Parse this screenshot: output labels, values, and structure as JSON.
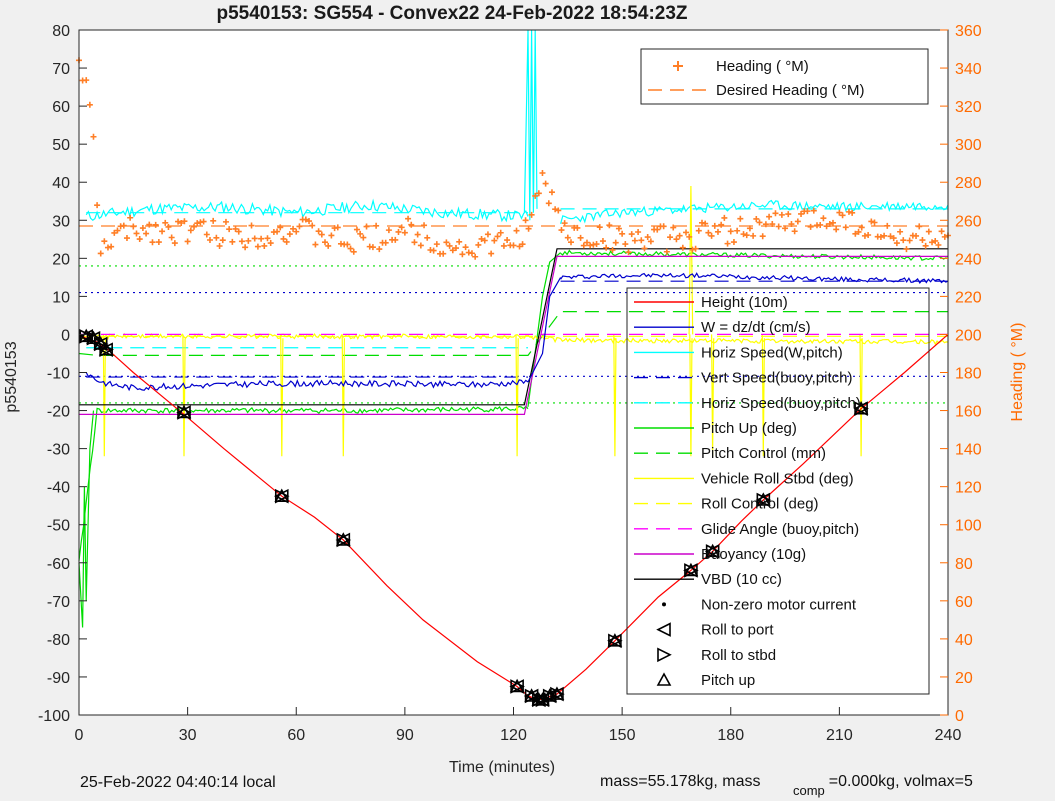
{
  "chart_data": {
    "type": "line",
    "title": "p5540153: SG554 - Convex22 24-Feb-2022 18:54:23Z",
    "xlabel": "Time (minutes)",
    "ylabel": "p5540153",
    "y2label": "Heading ( °M)",
    "xlim": [
      0,
      240
    ],
    "ylim": [
      -100,
      80
    ],
    "y2lim": [
      0,
      360
    ],
    "xticks": [
      0,
      30,
      60,
      90,
      120,
      150,
      180,
      210,
      240
    ],
    "yticks": [
      -100,
      -90,
      -80,
      -70,
      -60,
      -50,
      -40,
      -30,
      -20,
      -10,
      0,
      10,
      20,
      30,
      40,
      50,
      60,
      70,
      80
    ],
    "y2ticks": [
      0,
      20,
      40,
      60,
      80,
      100,
      120,
      140,
      160,
      180,
      200,
      220,
      240,
      260,
      280,
      300,
      320,
      340,
      360
    ],
    "colors": {
      "height": "#ff0000",
      "w": "#0000cc",
      "horiz": "#00ffff",
      "pitch": "#00dd00",
      "roll": "#ffff00",
      "glide": "#ff00ff",
      "buoy": "#cc00cc",
      "vbd": "#000000",
      "heading": "#ff7f27",
      "heading_axis": "#ff6a00"
    },
    "legend_top": [
      {
        "label": "Heading ( °M)",
        "style": "plus",
        "color": "#ff7f27"
      },
      {
        "label": "Desired Heading ( °M)",
        "style": "dash",
        "color": "#ff7f27"
      }
    ],
    "legend_main": [
      {
        "label": "Height (10m)",
        "style": "solid",
        "color": "#ff0000"
      },
      {
        "label": "W = dz/dt (cm/s)",
        "style": "solid",
        "color": "#0000cc"
      },
      {
        "label": "Horiz Speed(W,pitch)",
        "style": "solid",
        "color": "#00ffff"
      },
      {
        "label": "Vert Speed(buoy,pitch)",
        "style": "dash",
        "color": "#0000cc"
      },
      {
        "label": "Horiz Speed(buoy,pitch)",
        "style": "dash",
        "color": "#00ffff"
      },
      {
        "label": "Pitch Up (deg)",
        "style": "solid",
        "color": "#00dd00"
      },
      {
        "label": "Pitch Control (mm)",
        "style": "dash",
        "color": "#00dd00"
      },
      {
        "label": "Vehicle Roll Stbd (deg)",
        "style": "solid",
        "color": "#ffff00"
      },
      {
        "label": "Roll Control (deg)",
        "style": "dash",
        "color": "#ffff00"
      },
      {
        "label": "Glide Angle (buoy,pitch)",
        "style": "dash",
        "color": "#ff00ff"
      },
      {
        "label": "Buoyancy (10g)",
        "style": "solid",
        "color": "#cc00cc"
      },
      {
        "label": "VBD (10 cc)",
        "style": "solid",
        "color": "#000000"
      },
      {
        "label": "Non-zero motor current",
        "style": "dot",
        "color": "#000000"
      },
      {
        "label": "Roll to port",
        "style": "tri-left",
        "color": "#000000"
      },
      {
        "label": "Roll to stbd",
        "style": "tri-right",
        "color": "#000000"
      },
      {
        "label": "Pitch up",
        "style": "tri-up",
        "color": "#000000"
      }
    ],
    "series": {
      "height": {
        "x": [
          0,
          2,
          5,
          8,
          15,
          29,
          40,
          56,
          65,
          73,
          85,
          95,
          110,
          121,
          124,
          127,
          129,
          132,
          140,
          148,
          160,
          169,
          175,
          183,
          189,
          200,
          216,
          228,
          240
        ],
        "y": [
          0,
          -1,
          -2,
          -4,
          -10,
          -21,
          -30,
          -42.5,
          -48,
          -54,
          -66,
          -75,
          -86,
          -92.5,
          -95,
          -96,
          -95.5,
          -94.5,
          -88,
          -80.5,
          -69,
          -62,
          -57,
          -49,
          -43.5,
          -34,
          -19.5,
          -10,
          0
        ]
      },
      "w_down": {
        "x": [
          2,
          5,
          8,
          15,
          30,
          50,
          70,
          90,
          110,
          124
        ],
        "y": [
          -10,
          -12,
          -13,
          -14,
          -13.5,
          -13,
          -12.8,
          -13,
          -13.2,
          -12.5
        ]
      },
      "w_up": {
        "x": [
          133,
          150,
          170,
          190,
          210,
          240
        ],
        "y": [
          15,
          15.5,
          15.5,
          15,
          14.5,
          14
        ]
      },
      "horiz_down": {
        "x": [
          2,
          20,
          40,
          60,
          80,
          100,
          124
        ],
        "y": [
          31,
          33,
          33.5,
          32,
          34,
          32,
          31
        ]
      },
      "horiz_up": {
        "x": [
          133,
          150,
          170,
          190,
          210,
          240
        ],
        "y": [
          30,
          32,
          33,
          34,
          33.5,
          34
        ]
      },
      "pitch_down": {
        "x": [
          0,
          5,
          10,
          40,
          80,
          124
        ],
        "y": [
          -60,
          -20,
          -20,
          -20,
          -20,
          -19.5
        ]
      },
      "pitch_up": {
        "x": [
          133,
          240
        ],
        "y": [
          21.5,
          20
        ]
      },
      "pitch_ctrl": {
        "x": [
          0,
          5,
          124,
          133,
          240
        ],
        "y": [
          -5,
          -5.5,
          -5.5,
          6,
          6
        ]
      },
      "roll_ctrl": {
        "x": [
          0,
          240
        ],
        "y": [
          -0.5,
          -0.5
        ]
      },
      "glide": {
        "x": [
          0,
          240
        ],
        "y": [
          0,
          0
        ]
      },
      "buoy": {
        "x": [
          0,
          2,
          123,
          132,
          240
        ],
        "y": [
          -21,
          -21,
          -21,
          20.5,
          20.5
        ]
      },
      "vbd": {
        "x": [
          0,
          2,
          123,
          132,
          240
        ],
        "y": [
          -18.5,
          -18.5,
          -18.5,
          22.5,
          22.5
        ]
      },
      "heading": {
        "x": [
          0,
          2,
          4,
          6,
          8,
          15,
          30,
          45,
          60,
          75,
          90,
          105,
          120,
          125,
          128,
          135,
          150,
          165,
          180,
          195,
          210,
          225,
          240
        ],
        "y": [
          345,
          330,
          300,
          240,
          250,
          255,
          255,
          252,
          255,
          248,
          255,
          245,
          248,
          260,
          280,
          252,
          250,
          250,
          255,
          258,
          262,
          250,
          252
        ]
      },
      "desired_heading_y2": 257,
      "ref_dotted_blue": [
        11,
        -11
      ],
      "ref_dotted_green": [
        18,
        -18
      ],
      "motor_triangles": {
        "x": [
          2,
          4,
          6,
          7.5,
          29,
          56,
          73,
          121,
          125,
          127,
          128,
          130,
          132,
          148,
          169,
          175,
          189,
          216
        ],
        "y": [
          -0.5,
          -1,
          -2.5,
          -4,
          -20.5,
          -42.5,
          -54,
          -92.5,
          -95,
          -96,
          -96,
          -95,
          -94.5,
          -80.5,
          -62,
          -57,
          -43.5,
          -19.5
        ]
      }
    }
  },
  "footer": {
    "local_time": "25-Feb-2022 04:40:14 local",
    "mass_text": "mass=55.178kg, mass",
    "mass_sub": "comp",
    "mass_rest": "=0.000kg, volmax=5"
  }
}
